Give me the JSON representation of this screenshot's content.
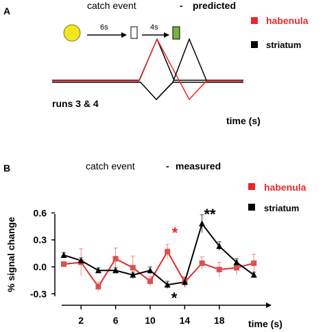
{
  "panel_a": {
    "letter": "A",
    "title_plain": "catch event",
    "title_dash": "-",
    "title_bold": "predicted",
    "interval_1": "6s",
    "interval_2": "4s",
    "runs_label": "runs 3 & 4",
    "xlabel": "time (s)",
    "legend": [
      {
        "name": "habenula",
        "color": "#e8272a"
      },
      {
        "name": "striatum",
        "color": "#000000"
      }
    ],
    "colors": {
      "circle": "#f3e51c",
      "cue_box": "#ffffff",
      "target_box": "#78b440"
    }
  },
  "panel_b": {
    "letter": "B",
    "title_plain": "catch event",
    "title_dash": "-",
    "title_bold": "measured",
    "ylabel": "% signal change",
    "xlabel": "time (s)",
    "yticks": [
      "0.6",
      "0.3",
      "0.0",
      "-0.3"
    ],
    "xticks": [
      "2",
      "6",
      "10",
      "14",
      "18"
    ],
    "legend": [
      {
        "name": "habenula",
        "color": "#e8272a"
      },
      {
        "name": "striatum",
        "color": "#000000"
      }
    ],
    "sig_habenula": "*",
    "sig_striatum_pos": "**",
    "sig_striatum_neg": "*"
  },
  "chart_data": [
    {
      "type": "line",
      "panel": "A",
      "title": "catch event - predicted",
      "xlabel": "time (s)",
      "schematic": true,
      "series": [
        {
          "name": "habenula",
          "color": "#e8272a",
          "peak": "positive then negative"
        },
        {
          "name": "striatum",
          "color": "#000000",
          "peak": "negative then positive"
        }
      ]
    },
    {
      "type": "line",
      "panel": "B",
      "title": "catch event - measured",
      "xlabel": "time (s)",
      "ylabel": "% signal change",
      "ylim": [
        -0.3,
        0.6
      ],
      "xlim": [
        0,
        22
      ],
      "x": [
        0,
        2,
        4,
        6,
        8,
        10,
        12,
        14,
        16,
        18,
        20,
        22
      ],
      "series": [
        {
          "name": "habenula",
          "color": "#e8272a",
          "values": [
            0.03,
            0.05,
            -0.22,
            0.09,
            -0.01,
            -0.16,
            0.17,
            -0.17,
            0.04,
            -0.03,
            -0.01,
            0.04
          ],
          "error": [
            0.03,
            0.15,
            0.05,
            0.12,
            0.13,
            0.05,
            0.08,
            0.06,
            0.07,
            0.08,
            0.08,
            0.1
          ]
        },
        {
          "name": "striatum",
          "color": "#000000",
          "values": [
            0.13,
            0.07,
            -0.04,
            -0.04,
            -0.09,
            -0.04,
            -0.2,
            -0.17,
            0.48,
            0.23,
            0.05,
            -0.09
          ],
          "error": [
            0.03,
            0.03,
            0.03,
            0.03,
            0.03,
            0.04,
            0.04,
            0.05,
            0.1,
            0.05,
            0.04,
            0.03
          ]
        }
      ],
      "annotations": [
        {
          "text": "*",
          "x": 12,
          "series": "habenula",
          "position": "above"
        },
        {
          "text": "**",
          "x": 16,
          "series": "striatum",
          "position": "above"
        },
        {
          "text": "*",
          "x": 12,
          "series": "striatum",
          "position": "below"
        }
      ]
    }
  ]
}
